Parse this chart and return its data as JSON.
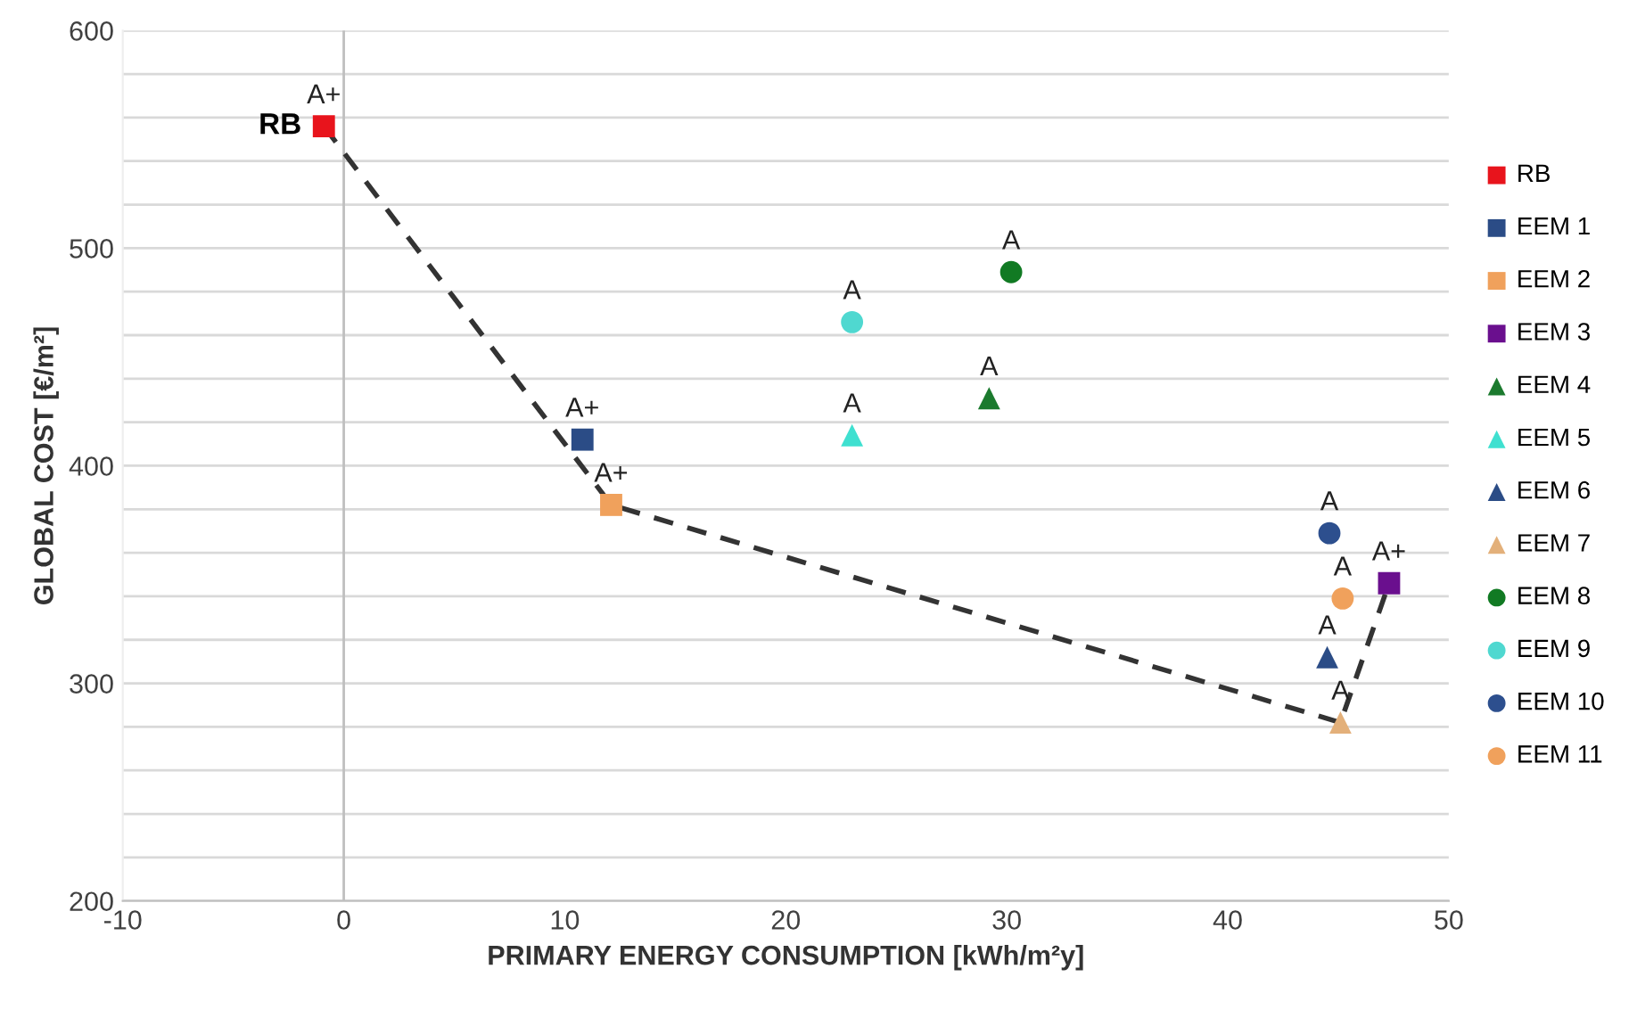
{
  "chart_data": {
    "type": "scatter",
    "xlabel": "PRIMARY ENERGY CONSUMPTION [kWh/m²y]",
    "ylabel": "GLOBAL COST [€/m²]",
    "xlim": [
      -10,
      50
    ],
    "xticks": [
      -10,
      0,
      10,
      20,
      30,
      40,
      50
    ],
    "ylim": [
      200,
      600
    ],
    "yticks": [
      200,
      {
        "value": 220,
        "label": null
      },
      {
        "value": 240,
        "label": null
      },
      {
        "value": 260,
        "label": null
      },
      {
        "value": 280,
        "label": null
      },
      300,
      {
        "value": 320,
        "label": null
      },
      {
        "value": 340,
        "label": null
      },
      {
        "value": 360,
        "label": null
      },
      {
        "value": 380,
        "label": null
      },
      400,
      {
        "value": 420,
        "label": null
      },
      {
        "value": 440,
        "label": null
      },
      {
        "value": 460,
        "label": null
      },
      {
        "value": 480,
        "label": null
      },
      500,
      {
        "value": 520,
        "label": null
      },
      {
        "value": 540,
        "label": null
      },
      {
        "value": 560,
        "label": null
      },
      {
        "value": 580,
        "label": null
      },
      600
    ],
    "grid": "y",
    "legend": "right",
    "ref_lines": [
      {
        "axis": "x",
        "value": 0,
        "color": "#bfbfbf"
      }
    ],
    "series": [
      {
        "type": "line",
        "x": [
          -0.9,
          12.1,
          45.1,
          47.3
        ],
        "values": [
          556,
          382,
          282,
          346
        ],
        "color": "#333333",
        "line_style": "dashed",
        "marker": "none"
      },
      {
        "name": "RB",
        "x": [
          -0.9
        ],
        "values": [
          556
        ],
        "color": "#e8141c",
        "marker": "square"
      },
      {
        "name": "EEM 1",
        "x": [
          10.8
        ],
        "values": [
          412
        ],
        "color": "#2b4c86",
        "marker": "square"
      },
      {
        "name": "EEM 2",
        "x": [
          12.1
        ],
        "values": [
          382
        ],
        "color": "#f0a15c",
        "marker": "square"
      },
      {
        "name": "EEM 3",
        "x": [
          47.3
        ],
        "values": [
          346
        ],
        "color": "#6a0f8e",
        "marker": "square"
      },
      {
        "name": "EEM 4",
        "x": [
          29.2
        ],
        "values": [
          431
        ],
        "color": "#1b7a2e",
        "marker": "triangle"
      },
      {
        "name": "EEM 5",
        "x": [
          23.0
        ],
        "values": [
          414
        ],
        "color": "#3fe0d0",
        "marker": "triangle"
      },
      {
        "name": "EEM 6",
        "x": [
          44.5
        ],
        "values": [
          312
        ],
        "color": "#2b4c86",
        "marker": "triangle"
      },
      {
        "name": "EEM 7",
        "x": [
          45.1
        ],
        "values": [
          282
        ],
        "color": "#e3b07a",
        "marker": "triangle"
      },
      {
        "name": "EEM 8",
        "x": [
          30.2
        ],
        "values": [
          489
        ],
        "color": "#117a23",
        "marker": "circle"
      },
      {
        "name": "EEM 9",
        "x": [
          23.0
        ],
        "values": [
          466
        ],
        "color": "#4fd8d0",
        "marker": "circle"
      },
      {
        "name": "EEM 10",
        "x": [
          44.6
        ],
        "values": [
          369
        ],
        "color": "#2d4f8e",
        "marker": "circle"
      },
      {
        "name": "EEM 11",
        "x": [
          45.2
        ],
        "values": [
          339
        ],
        "color": "#f0a15c",
        "marker": "circle"
      }
    ],
    "annotations": [
      {
        "text": "RB",
        "x": -0.9,
        "y": 556
      },
      {
        "text": "A+",
        "x": -0.9,
        "y": 556
      },
      {
        "text": "A+",
        "x": 10.8,
        "y": 412
      },
      {
        "text": "A+",
        "x": 12.1,
        "y": 382
      },
      {
        "text": "A+",
        "x": 47.3,
        "y": 346
      },
      {
        "text": "A",
        "x": 29.2,
        "y": 431
      },
      {
        "text": "A",
        "x": 23.0,
        "y": 414
      },
      {
        "text": "A",
        "x": 44.5,
        "y": 312
      },
      {
        "text": "A",
        "x": 45.1,
        "y": 282
      },
      {
        "text": "A",
        "x": 30.2,
        "y": 489
      },
      {
        "text": "A",
        "x": 23.0,
        "y": 466
      },
      {
        "text": "A",
        "x": 44.6,
        "y": 369
      },
      {
        "text": "A",
        "x": 45.2,
        "y": 339
      }
    ]
  }
}
